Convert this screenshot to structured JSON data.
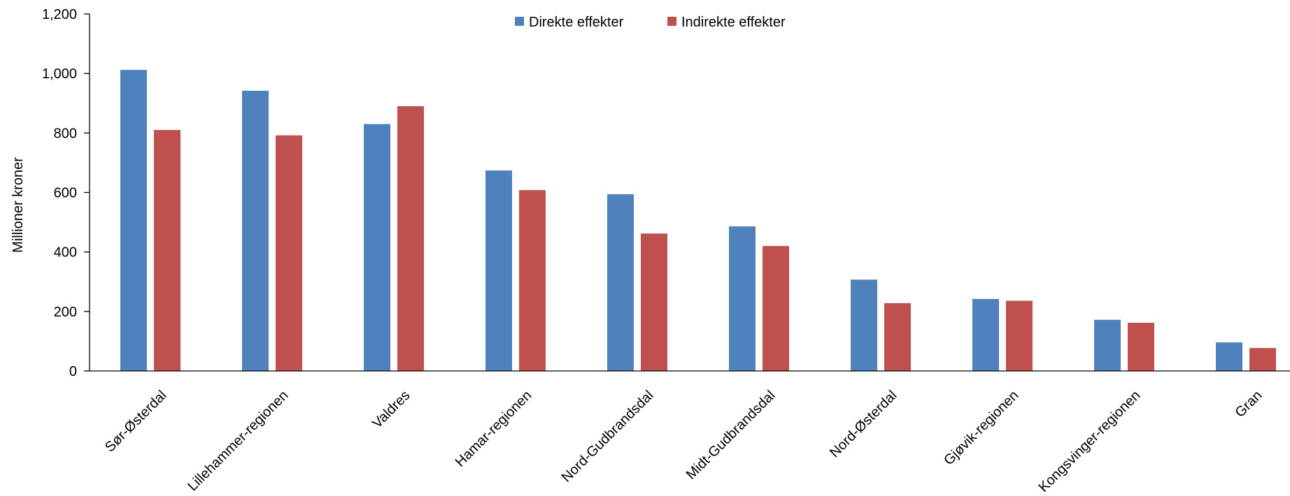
{
  "chart_data": {
    "type": "bar",
    "title": "",
    "xlabel": "",
    "ylabel": "Millioner kroner",
    "ylim": [
      0,
      1200
    ],
    "yticks": [
      0,
      200,
      400,
      600,
      800,
      1000,
      1200
    ],
    "ytick_labels": [
      "0",
      "200",
      "400",
      "600",
      "800",
      "1,000",
      "1,200"
    ],
    "grid": false,
    "legend_position": "top-center",
    "categories": [
      "Sør-Østerdal",
      "Lillehammer-regionen",
      "Valdres",
      "Hamar-regionen",
      "Nord-Gudbrandsdal",
      "Midt-Gudbrandsdal",
      "Nord-Østerdal",
      "Gjøvik-regionen",
      "Kongsvinger-regionen",
      "Gran"
    ],
    "series": [
      {
        "name": "Direkte effekter",
        "color": "#4F81BD",
        "values": [
          1012,
          942,
          830,
          674,
          594,
          486,
          307,
          242,
          172,
          96
        ]
      },
      {
        "name": "Indirekte effekter",
        "color": "#C0504D",
        "values": [
          810,
          792,
          890,
          608,
          462,
          420,
          228,
          236,
          162,
          77
        ]
      }
    ]
  }
}
